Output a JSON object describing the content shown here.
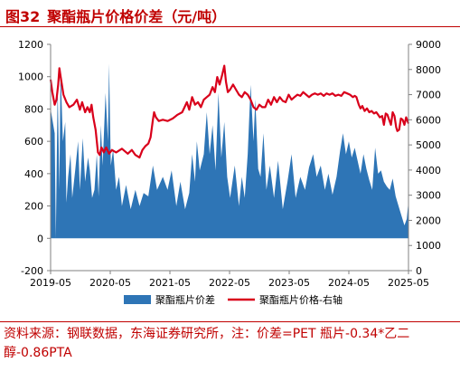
{
  "figure": {
    "number": "图32",
    "title": "聚酯瓶片价格价差（元/吨）"
  },
  "note": "资料来源：钢联数据，东海证券研究所，注：价差=PET 瓶片-0.34*乙二醇-0.86PTA",
  "colors": {
    "title": "#c00000",
    "spread_fill": "#2e75b6",
    "price_line": "#d9001b",
    "axis": "#808080"
  },
  "chart_data": {
    "type": "area+line",
    "x_tick_labels": [
      "2019-05",
      "2020-05",
      "2021-05",
      "2022-05",
      "2023-05",
      "2024-05",
      "2025-05"
    ],
    "x_range": [
      2019.33,
      2025.45
    ],
    "left_axis": {
      "range": [
        -200,
        1200
      ],
      "step": 200,
      "ticks": [
        "-200",
        "0",
        "200",
        "400",
        "600",
        "800",
        "1000",
        "1200"
      ]
    },
    "right_axis": {
      "range": [
        0,
        9000
      ],
      "step": 1000,
      "ticks": [
        "0",
        "1000",
        "2000",
        "3000",
        "4000",
        "5000",
        "6000",
        "7000",
        "8000",
        "9000"
      ]
    },
    "legend": {
      "position": "bottom"
    },
    "series": [
      {
        "name": "聚酯瓶片价差",
        "type": "area",
        "axis": "left",
        "points": [
          [
            2019.33,
            800
          ],
          [
            2019.4,
            650
          ],
          [
            2019.42,
            0
          ],
          [
            2019.45,
            950
          ],
          [
            2019.48,
            300
          ],
          [
            2019.5,
            1050
          ],
          [
            2019.54,
            600
          ],
          [
            2019.58,
            720
          ],
          [
            2019.6,
            220
          ],
          [
            2019.63,
            380
          ],
          [
            2019.67,
            520
          ],
          [
            2019.7,
            250
          ],
          [
            2019.75,
            420
          ],
          [
            2019.8,
            600
          ],
          [
            2019.83,
            300
          ],
          [
            2019.88,
            620
          ],
          [
            2019.92,
            350
          ],
          [
            2019.97,
            500
          ],
          [
            2020.0,
            420
          ],
          [
            2020.04,
            250
          ],
          [
            2020.08,
            300
          ],
          [
            2020.12,
            520
          ],
          [
            2020.15,
            260
          ],
          [
            2020.19,
            700
          ],
          [
            2020.22,
            450
          ],
          [
            2020.27,
            900
          ],
          [
            2020.31,
            600
          ],
          [
            2020.33,
            1080
          ],
          [
            2020.36,
            450
          ],
          [
            2020.4,
            550
          ],
          [
            2020.45,
            300
          ],
          [
            2020.5,
            380
          ],
          [
            2020.55,
            200
          ],
          [
            2020.62,
            330
          ],
          [
            2020.7,
            180
          ],
          [
            2020.78,
            300
          ],
          [
            2020.85,
            200
          ],
          [
            2020.92,
            280
          ],
          [
            2021.0,
            260
          ],
          [
            2021.08,
            450
          ],
          [
            2021.15,
            300
          ],
          [
            2021.25,
            380
          ],
          [
            2021.33,
            300
          ],
          [
            2021.4,
            420
          ],
          [
            2021.48,
            200
          ],
          [
            2021.55,
            350
          ],
          [
            2021.63,
            180
          ],
          [
            2021.7,
            280
          ],
          [
            2021.75,
            520
          ],
          [
            2021.8,
            350
          ],
          [
            2021.83,
            600
          ],
          [
            2021.88,
            420
          ],
          [
            2021.95,
            520
          ],
          [
            2022.0,
            780
          ],
          [
            2022.05,
            520
          ],
          [
            2022.1,
            700
          ],
          [
            2022.15,
            420
          ],
          [
            2022.2,
            900
          ],
          [
            2022.25,
            500
          ],
          [
            2022.3,
            720
          ],
          [
            2022.35,
            380
          ],
          [
            2022.4,
            250
          ],
          [
            2022.48,
            450
          ],
          [
            2022.55,
            200
          ],
          [
            2022.6,
            380
          ],
          [
            2022.65,
            250
          ],
          [
            2022.7,
            520
          ],
          [
            2022.75,
            950
          ],
          [
            2022.8,
            600
          ],
          [
            2022.83,
            860
          ],
          [
            2022.88,
            430
          ],
          [
            2022.92,
            380
          ],
          [
            2022.97,
            650
          ],
          [
            2023.02,
            300
          ],
          [
            2023.08,
            450
          ],
          [
            2023.15,
            250
          ],
          [
            2023.22,
            480
          ],
          [
            2023.3,
            180
          ],
          [
            2023.38,
            350
          ],
          [
            2023.45,
            520
          ],
          [
            2023.52,
            250
          ],
          [
            2023.6,
            380
          ],
          [
            2023.68,
            300
          ],
          [
            2023.75,
            440
          ],
          [
            2023.82,
            520
          ],
          [
            2023.88,
            380
          ],
          [
            2023.95,
            450
          ],
          [
            2024.02,
            300
          ],
          [
            2024.08,
            400
          ],
          [
            2024.15,
            270
          ],
          [
            2024.22,
            380
          ],
          [
            2024.28,
            540
          ],
          [
            2024.33,
            650
          ],
          [
            2024.38,
            520
          ],
          [
            2024.43,
            600
          ],
          [
            2024.48,
            500
          ],
          [
            2024.53,
            560
          ],
          [
            2024.58,
            480
          ],
          [
            2024.63,
            400
          ],
          [
            2024.68,
            520
          ],
          [
            2024.73,
            430
          ],
          [
            2024.78,
            360
          ],
          [
            2024.83,
            300
          ],
          [
            2024.88,
            560
          ],
          [
            2024.93,
            400
          ],
          [
            2024.98,
            420
          ],
          [
            2025.03,
            350
          ],
          [
            2025.08,
            320
          ],
          [
            2025.13,
            300
          ],
          [
            2025.18,
            370
          ],
          [
            2025.23,
            260
          ],
          [
            2025.28,
            200
          ],
          [
            2025.33,
            140
          ],
          [
            2025.38,
            80
          ],
          [
            2025.42,
            120
          ],
          [
            2025.45,
            230
          ]
        ]
      },
      {
        "name": "聚酯瓶片价格-右轴",
        "type": "line",
        "axis": "right",
        "points": [
          [
            2019.33,
            7600
          ],
          [
            2019.36,
            7100
          ],
          [
            2019.4,
            6600
          ],
          [
            2019.43,
            6800
          ],
          [
            2019.46,
            7400
          ],
          [
            2019.48,
            8050
          ],
          [
            2019.51,
            7600
          ],
          [
            2019.55,
            7000
          ],
          [
            2019.6,
            6700
          ],
          [
            2019.65,
            6500
          ],
          [
            2019.72,
            6600
          ],
          [
            2019.78,
            6800
          ],
          [
            2019.83,
            6400
          ],
          [
            2019.87,
            6700
          ],
          [
            2019.92,
            6300
          ],
          [
            2019.96,
            6500
          ],
          [
            2020.0,
            6300
          ],
          [
            2020.03,
            6600
          ],
          [
            2020.06,
            6100
          ],
          [
            2020.1,
            5600
          ],
          [
            2020.14,
            4700
          ],
          [
            2020.17,
            4600
          ],
          [
            2020.2,
            4900
          ],
          [
            2020.24,
            4700
          ],
          [
            2020.28,
            4900
          ],
          [
            2020.33,
            4650
          ],
          [
            2020.38,
            4800
          ],
          [
            2020.45,
            4700
          ],
          [
            2020.55,
            4850
          ],
          [
            2020.65,
            4650
          ],
          [
            2020.72,
            4800
          ],
          [
            2020.78,
            4600
          ],
          [
            2020.85,
            4500
          ],
          [
            2020.9,
            4800
          ],
          [
            2020.95,
            4950
          ],
          [
            2021.0,
            5050
          ],
          [
            2021.04,
            5300
          ],
          [
            2021.08,
            6000
          ],
          [
            2021.1,
            6300
          ],
          [
            2021.13,
            6100
          ],
          [
            2021.18,
            5950
          ],
          [
            2021.25,
            6000
          ],
          [
            2021.33,
            5950
          ],
          [
            2021.42,
            6050
          ],
          [
            2021.5,
            6200
          ],
          [
            2021.58,
            6300
          ],
          [
            2021.66,
            6700
          ],
          [
            2021.7,
            6400
          ],
          [
            2021.75,
            6900
          ],
          [
            2021.8,
            6600
          ],
          [
            2021.85,
            6700
          ],
          [
            2021.9,
            6500
          ],
          [
            2021.95,
            6800
          ],
          [
            2022.0,
            6900
          ],
          [
            2022.05,
            7000
          ],
          [
            2022.1,
            7300
          ],
          [
            2022.14,
            7100
          ],
          [
            2022.18,
            7700
          ],
          [
            2022.22,
            7400
          ],
          [
            2022.26,
            7750
          ],
          [
            2022.3,
            8150
          ],
          [
            2022.33,
            7500
          ],
          [
            2022.36,
            7100
          ],
          [
            2022.4,
            7200
          ],
          [
            2022.45,
            7400
          ],
          [
            2022.5,
            7200
          ],
          [
            2022.55,
            7000
          ],
          [
            2022.6,
            6900
          ],
          [
            2022.65,
            7100
          ],
          [
            2022.7,
            7000
          ],
          [
            2022.75,
            6800
          ],
          [
            2022.8,
            6500
          ],
          [
            2022.85,
            6400
          ],
          [
            2022.9,
            6600
          ],
          [
            2022.95,
            6500
          ],
          [
            2023.0,
            6500
          ],
          [
            2023.05,
            6800
          ],
          [
            2023.1,
            6600
          ],
          [
            2023.15,
            6900
          ],
          [
            2023.2,
            6700
          ],
          [
            2023.25,
            6900
          ],
          [
            2023.3,
            6750
          ],
          [
            2023.35,
            6700
          ],
          [
            2023.4,
            7000
          ],
          [
            2023.45,
            6800
          ],
          [
            2023.5,
            6900
          ],
          [
            2023.55,
            7000
          ],
          [
            2023.6,
            6950
          ],
          [
            2023.65,
            7100
          ],
          [
            2023.7,
            7000
          ],
          [
            2023.75,
            6900
          ],
          [
            2023.8,
            7000
          ],
          [
            2023.85,
            7050
          ],
          [
            2023.9,
            7000
          ],
          [
            2023.95,
            7050
          ],
          [
            2024.0,
            6950
          ],
          [
            2024.05,
            7050
          ],
          [
            2024.1,
            7000
          ],
          [
            2024.15,
            7050
          ],
          [
            2024.2,
            6950
          ],
          [
            2024.25,
            7000
          ],
          [
            2024.3,
            6950
          ],
          [
            2024.35,
            7100
          ],
          [
            2024.4,
            7050
          ],
          [
            2024.45,
            7000
          ],
          [
            2024.5,
            6900
          ],
          [
            2024.53,
            6950
          ],
          [
            2024.56,
            6900
          ],
          [
            2024.6,
            6600
          ],
          [
            2024.63,
            6450
          ],
          [
            2024.66,
            6550
          ],
          [
            2024.7,
            6350
          ],
          [
            2024.74,
            6450
          ],
          [
            2024.78,
            6300
          ],
          [
            2024.82,
            6350
          ],
          [
            2024.86,
            6250
          ],
          [
            2024.9,
            6300
          ],
          [
            2024.93,
            6200
          ],
          [
            2024.96,
            6100
          ],
          [
            2025.0,
            6150
          ],
          [
            2025.03,
            5800
          ],
          [
            2025.06,
            6250
          ],
          [
            2025.09,
            6200
          ],
          [
            2025.12,
            6000
          ],
          [
            2025.15,
            5800
          ],
          [
            2025.18,
            6300
          ],
          [
            2025.21,
            6150
          ],
          [
            2025.24,
            5700
          ],
          [
            2025.26,
            5550
          ],
          [
            2025.29,
            5600
          ],
          [
            2025.32,
            6050
          ],
          [
            2025.35,
            6000
          ],
          [
            2025.38,
            5800
          ],
          [
            2025.41,
            6100
          ],
          [
            2025.45,
            5850
          ]
        ]
      }
    ]
  }
}
